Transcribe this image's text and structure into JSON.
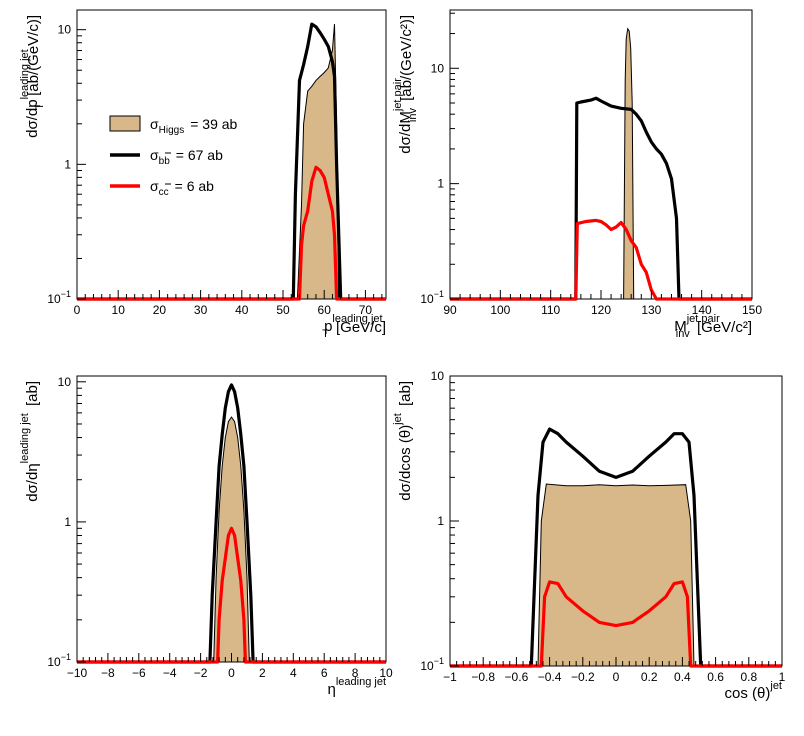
{
  "colors": {
    "higgs_fill": "#d8b889",
    "bb_line": "#000000",
    "cc_line": "#ff0000"
  },
  "legend": {
    "position": "upper-left of panel 1",
    "entries": [
      {
        "name": "higgs",
        "symbol": "σ",
        "sub": "Higgs",
        "value": "= 39 ab",
        "style": "fill"
      },
      {
        "name": "bb",
        "symbol": "σ",
        "sub": "bb",
        "value": "= 67 ab",
        "style": "line-black"
      },
      {
        "name": "cc",
        "symbol": "σ",
        "sub": "cc",
        "value": "= 6 ab",
        "style": "line-red"
      }
    ]
  },
  "chart_data": [
    {
      "type": "area",
      "ylabel": {
        "main": "dσ/dp",
        "sub": "T",
        "sup": "leading jet",
        "unit": "[ab/(GeV/c)]"
      },
      "xlabel": {
        "main": "p",
        "sub": "T",
        "sup": "leading jet",
        "unit": "[GeV/c]"
      },
      "xlim": [
        0,
        75
      ],
      "ylim": [
        0.1,
        14
      ],
      "yscale": "log",
      "xticks": [
        0,
        10,
        20,
        30,
        40,
        50,
        60,
        70
      ],
      "yticks": [
        {
          "v": 0.1,
          "main": "10",
          "sup": "−1"
        },
        {
          "v": 1,
          "main": "1",
          "sup": ""
        },
        {
          "v": 10,
          "main": "10",
          "sup": ""
        }
      ],
      "series": [
        {
          "name": "Higgs",
          "style": "fill",
          "x": [
            53.5,
            54.5,
            55,
            56,
            57,
            58,
            59,
            60,
            61,
            62,
            62.5,
            63,
            63.5
          ],
          "y": [
            0.1,
            0.5,
            2.0,
            3.5,
            3.8,
            4.2,
            4.5,
            4.8,
            5.2,
            7.0,
            11,
            2.0,
            0.1
          ]
        },
        {
          "name": "bb",
          "style": "black",
          "x": [
            0,
            52.5,
            53,
            54,
            55,
            56,
            57,
            58,
            59,
            60,
            61,
            62,
            62.5,
            63,
            64,
            75
          ],
          "y": [
            0.1,
            0.1,
            0.6,
            4.2,
            5.5,
            7.5,
            11,
            10.5,
            9.5,
            8.5,
            7.5,
            5.8,
            4.5,
            1.0,
            0.1,
            0.1
          ]
        },
        {
          "name": "cc",
          "style": "red",
          "x": [
            0,
            54,
            54.5,
            55,
            56,
            57,
            58,
            59,
            60,
            61,
            62,
            62.5,
            63,
            75
          ],
          "y": [
            0.1,
            0.1,
            0.25,
            0.35,
            0.45,
            0.75,
            0.95,
            0.9,
            0.8,
            0.6,
            0.45,
            0.3,
            0.1,
            0.1
          ]
        }
      ]
    },
    {
      "type": "area",
      "ylabel": {
        "main": "dσ/dM",
        "sub": "inv",
        "sup": "jet pair",
        "unit": "[ab/(GeV/c²)]"
      },
      "xlabel": {
        "main": "M",
        "sub": "inv",
        "sup": "jet pair",
        "unit": "[GeV/c²]"
      },
      "xlim": [
        90,
        150
      ],
      "ylim": [
        0.1,
        32
      ],
      "yscale": "log",
      "xticks": [
        90,
        100,
        110,
        120,
        130,
        140,
        150
      ],
      "yticks": [
        {
          "v": 0.1,
          "main": "10",
          "sup": "−1"
        },
        {
          "v": 1,
          "main": "1",
          "sup": ""
        },
        {
          "v": 10,
          "main": "10",
          "sup": ""
        }
      ],
      "series": [
        {
          "name": "Higgs",
          "style": "fill",
          "x": [
            124.5,
            124.8,
            125,
            125.3,
            125.6,
            125.9,
            126.2,
            126.5
          ],
          "y": [
            0.1,
            8.0,
            18,
            22,
            21,
            15,
            5.0,
            0.1
          ]
        },
        {
          "name": "bb",
          "style": "black",
          "x": [
            90,
            115,
            115.2,
            116,
            118,
            119,
            120,
            122,
            124,
            126,
            127,
            128,
            129,
            130,
            131,
            132,
            133,
            134,
            135,
            135.5,
            150
          ],
          "y": [
            0.1,
            0.1,
            5.0,
            5.1,
            5.3,
            5.5,
            5.2,
            4.7,
            4.5,
            4.4,
            4.0,
            3.5,
            2.8,
            2.3,
            2.0,
            1.8,
            1.5,
            1.1,
            0.5,
            0.1,
            0.1
          ]
        },
        {
          "name": "cc",
          "style": "red",
          "x": [
            90,
            115,
            115.3,
            117,
            119,
            120,
            121,
            122,
            123,
            124,
            125,
            126,
            127,
            128,
            129,
            130,
            131,
            150
          ],
          "y": [
            0.1,
            0.1,
            0.45,
            0.47,
            0.48,
            0.47,
            0.44,
            0.4,
            0.42,
            0.46,
            0.4,
            0.32,
            0.28,
            0.2,
            0.17,
            0.12,
            0.1,
            0.1
          ]
        }
      ]
    },
    {
      "type": "area",
      "ylabel": {
        "main": "dσ/dη",
        "sub": "",
        "sup": "leading jet",
        "unit": "[ab]"
      },
      "xlabel": {
        "main": "η",
        "sub": "",
        "sup": "leading jet",
        "unit": ""
      },
      "xlim": [
        -10,
        10
      ],
      "ylim": [
        0.1,
        11
      ],
      "yscale": "log",
      "xticks": [
        -10,
        -8,
        -6,
        -4,
        -2,
        0,
        2,
        4,
        6,
        8,
        10
      ],
      "yticks": [
        {
          "v": 0.1,
          "main": "10",
          "sup": "−1"
        },
        {
          "v": 1,
          "main": "1",
          "sup": ""
        },
        {
          "v": 10,
          "main": "10",
          "sup": ""
        }
      ],
      "series": [
        {
          "name": "Higgs",
          "style": "fill",
          "x": [
            -1.15,
            -1.0,
            -0.8,
            -0.6,
            -0.4,
            -0.2,
            0,
            0.2,
            0.4,
            0.6,
            0.8,
            1.0,
            1.15
          ],
          "y": [
            0.1,
            0.4,
            1.2,
            2.5,
            4.0,
            5.2,
            5.6,
            5.2,
            4.0,
            2.5,
            1.2,
            0.4,
            0.1
          ]
        },
        {
          "name": "bb",
          "style": "black",
          "x": [
            -10,
            -1.4,
            -1.25,
            -1.0,
            -0.8,
            -0.6,
            -0.4,
            -0.2,
            0,
            0.2,
            0.4,
            0.6,
            0.8,
            1.0,
            1.25,
            1.4,
            10
          ],
          "y": [
            0.1,
            0.1,
            0.3,
            1.0,
            2.5,
            4.2,
            6.5,
            8.5,
            9.5,
            8.5,
            6.5,
            4.2,
            2.5,
            1.0,
            0.3,
            0.1,
            0.1
          ]
        },
        {
          "name": "cc",
          "style": "red",
          "x": [
            -10,
            -0.9,
            -0.8,
            -0.6,
            -0.4,
            -0.2,
            0,
            0.2,
            0.4,
            0.6,
            0.8,
            0.9,
            10
          ],
          "y": [
            0.1,
            0.1,
            0.2,
            0.38,
            0.55,
            0.8,
            0.9,
            0.8,
            0.55,
            0.38,
            0.2,
            0.1,
            0.1
          ]
        }
      ]
    },
    {
      "type": "area",
      "ylabel": {
        "main": "dσ/dcos (θ)",
        "sub": "",
        "sup": "jet",
        "unit": "[ab]"
      },
      "xlabel": {
        "main": "cos (θ)",
        "sub": "",
        "sup": "jet",
        "unit": ""
      },
      "xlim": [
        -1,
        1
      ],
      "ylim": [
        0.1,
        10
      ],
      "yscale": "log",
      "xticks": [
        -1,
        -0.8,
        -0.6,
        -0.4,
        -0.2,
        0,
        0.2,
        0.4,
        0.6,
        0.8,
        1
      ],
      "yticks": [
        {
          "v": 0.1,
          "main": "10",
          "sup": "−1"
        },
        {
          "v": 1,
          "main": "1",
          "sup": ""
        },
        {
          "v": 10,
          "main": "10",
          "sup": ""
        }
      ],
      "series": [
        {
          "name": "Higgs",
          "style": "fill",
          "x": [
            -0.47,
            -0.45,
            -0.42,
            -0.3,
            -0.2,
            -0.1,
            0,
            0.1,
            0.2,
            0.3,
            0.42,
            0.45,
            0.47
          ],
          "y": [
            0.1,
            1.0,
            1.8,
            1.75,
            1.75,
            1.78,
            1.75,
            1.77,
            1.75,
            1.76,
            1.78,
            1.0,
            0.1
          ]
        },
        {
          "name": "bb",
          "style": "black",
          "x": [
            -1,
            -0.51,
            -0.47,
            -0.44,
            -0.4,
            -0.35,
            -0.3,
            -0.2,
            -0.1,
            0,
            0.1,
            0.2,
            0.3,
            0.35,
            0.4,
            0.44,
            0.47,
            0.51,
            1
          ],
          "y": [
            0.1,
            0.1,
            1.5,
            3.5,
            4.3,
            4.0,
            3.5,
            2.8,
            2.2,
            2.0,
            2.2,
            2.8,
            3.5,
            4.0,
            4.0,
            3.5,
            1.5,
            0.1,
            0.1
          ]
        },
        {
          "name": "cc",
          "style": "red",
          "x": [
            -1,
            -0.45,
            -0.43,
            -0.4,
            -0.35,
            -0.3,
            -0.2,
            -0.1,
            0,
            0.1,
            0.2,
            0.3,
            0.35,
            0.4,
            0.43,
            0.45,
            1
          ],
          "y": [
            0.1,
            0.1,
            0.3,
            0.38,
            0.37,
            0.3,
            0.24,
            0.2,
            0.19,
            0.2,
            0.24,
            0.3,
            0.37,
            0.38,
            0.3,
            0.1,
            0.1
          ]
        }
      ]
    }
  ]
}
